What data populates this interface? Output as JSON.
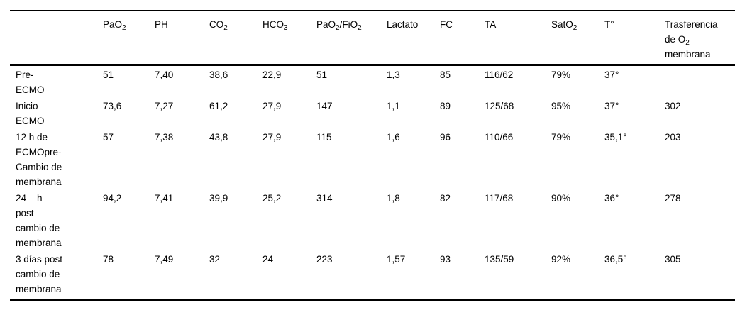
{
  "table": {
    "columns": [
      {
        "id": "row-label",
        "header_lines": []
      },
      {
        "id": "pao2",
        "header_lines": [
          [
            {
              "t": "PaO"
            },
            {
              "s": "2"
            }
          ]
        ]
      },
      {
        "id": "ph",
        "header_lines": [
          [
            {
              "t": "PH"
            }
          ]
        ]
      },
      {
        "id": "co2",
        "header_lines": [
          [
            {
              "t": "CO"
            },
            {
              "s": "2"
            }
          ]
        ]
      },
      {
        "id": "hco3",
        "header_lines": [
          [
            {
              "t": "HCO"
            },
            {
              "s": "3"
            }
          ]
        ]
      },
      {
        "id": "pao2-fio2",
        "header_lines": [
          [
            {
              "t": "PaO"
            },
            {
              "s": "2"
            },
            {
              "t": "/FiO"
            },
            {
              "s": "2"
            }
          ]
        ]
      },
      {
        "id": "lactato",
        "header_lines": [
          [
            {
              "t": "Lactato"
            }
          ]
        ]
      },
      {
        "id": "fc",
        "header_lines": [
          [
            {
              "t": "FC"
            }
          ]
        ]
      },
      {
        "id": "ta",
        "header_lines": [
          [
            {
              "t": "TA"
            }
          ]
        ]
      },
      {
        "id": "sato2",
        "header_lines": [
          [
            {
              "t": "SatO"
            },
            {
              "s": "2"
            }
          ]
        ]
      },
      {
        "id": "temperatura",
        "header_lines": [
          [
            {
              "t": "T°"
            }
          ]
        ]
      },
      {
        "id": "trasferencia-o2-membrana",
        "header_lines": [
          [
            {
              "t": "Trasferencia"
            }
          ],
          [
            {
              "t": "de O"
            },
            {
              "s": "2"
            }
          ],
          [
            {
              "t": "membrana"
            }
          ]
        ]
      }
    ],
    "rows": [
      {
        "label": "Pre-\nECMO",
        "values": [
          "51",
          "7,40",
          "38,6",
          "22,9",
          "51",
          "1,3",
          "85",
          "116/62",
          "79%",
          "37°",
          ""
        ]
      },
      {
        "label": "Inicio\nECMO",
        "values": [
          "73,6",
          "7,27",
          "61,2",
          "27,9",
          "147",
          "1,1",
          "89",
          "125/68",
          "95%",
          "37°",
          "302"
        ]
      },
      {
        "label": "12 h de\nECMOpre-\nCambio de\nmembrana",
        "values": [
          "57",
          "7,38",
          "43,8",
          "27,9",
          "115",
          "1,6",
          "96",
          "110/66",
          "79%",
          "35,1°",
          "203"
        ]
      },
      {
        "label": "24    h\npost\ncambio de\nmembrana",
        "values": [
          "94,2",
          "7,41",
          "39,9",
          "25,2",
          "314",
          "1,8",
          "82",
          "117/68",
          "90%",
          "36°",
          "278"
        ]
      },
      {
        "label": "3 días post\ncambio de\nmembrana",
        "values": [
          "78",
          "7,49",
          "32",
          "24",
          "223",
          "1,57",
          "93",
          "135/59",
          "92%",
          "36,5°",
          "305"
        ]
      }
    ]
  }
}
